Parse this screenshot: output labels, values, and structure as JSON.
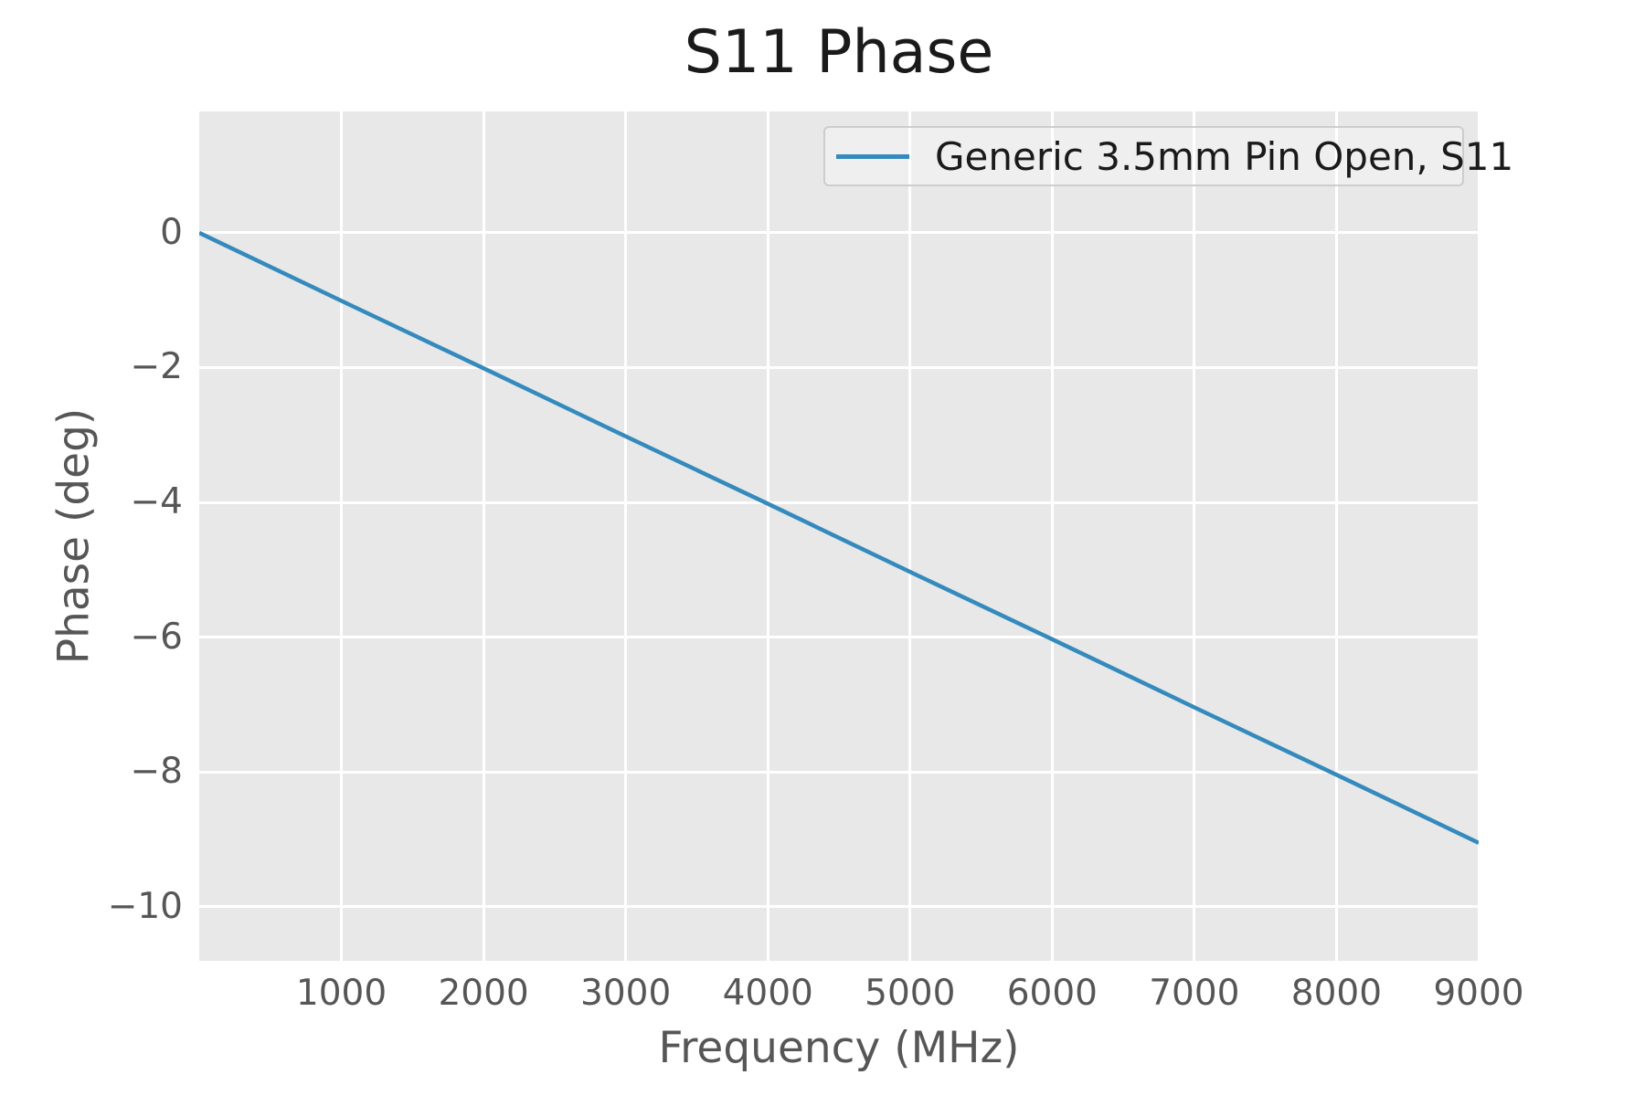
{
  "figure": {
    "background": "#ffffff",
    "plot_background": "#e8e8e8",
    "grid_color": "#ffffff",
    "tick_color": "#565656",
    "title_color": "#1a1a1a"
  },
  "chart_data": {
    "type": "line",
    "title": "S11 Phase",
    "xlabel": "Frequency (MHz)",
    "ylabel": "Phase (deg)",
    "xlim": [
      0,
      9000
    ],
    "ylim": [
      -10.8,
      1.8
    ],
    "grid": true,
    "xticks": [
      1000,
      2000,
      3000,
      4000,
      5000,
      6000,
      7000,
      8000,
      9000
    ],
    "xtick_labels": [
      "1000",
      "2000",
      "3000",
      "4000",
      "5000",
      "6000",
      "7000",
      "8000",
      "9000"
    ],
    "yticks": [
      0,
      -2,
      -4,
      -6,
      -8,
      -10
    ],
    "ytick_labels": [
      "0",
      "−2",
      "−4",
      "−6",
      "−8",
      "−10"
    ],
    "legend": {
      "position": "upper right",
      "entries": [
        {
          "label": "Generic 3.5mm Pin Open, S11",
          "color": "#348abd"
        }
      ]
    },
    "series": [
      {
        "name": "Generic 3.5mm Pin Open, S11",
        "color": "#348abd",
        "x": [
          0,
          1000,
          2000,
          3000,
          4000,
          5000,
          6000,
          7000,
          8000,
          9000
        ],
        "y": [
          0,
          -1.01,
          -2.01,
          -3.02,
          -4.02,
          -5.03,
          -6.03,
          -7.04,
          -8.04,
          -9.05
        ]
      }
    ]
  }
}
